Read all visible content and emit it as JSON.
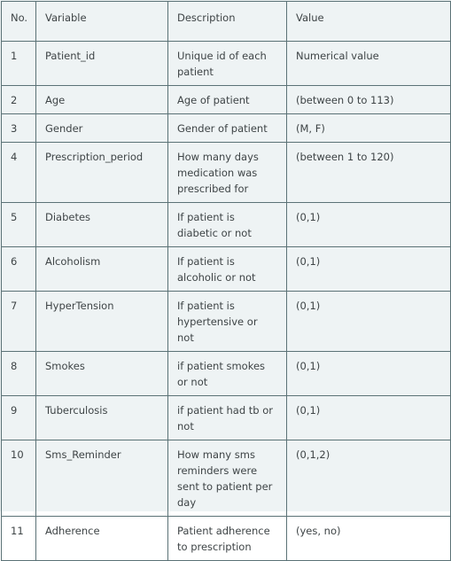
{
  "table": {
    "headers": [
      "No.",
      "Variable",
      "Description",
      "Value"
    ],
    "rows": [
      [
        "1",
        "Patient_id",
        "Unique id of each patient",
        "Numerical value"
      ],
      [
        "2",
        "Age",
        "Age of patient",
        "(between 0 to 113)"
      ],
      [
        "3",
        "Gender",
        "Gender of patient",
        "(M, F)"
      ],
      [
        "4",
        "Prescription_period",
        "How many days medication was prescribed for",
        "(between 1 to 120)"
      ],
      [
        "5",
        "Diabetes",
        "If patient is diabetic or not",
        "(0,1)"
      ],
      [
        "6",
        "Alcoholism",
        "If patient is alcoholic or not",
        "(0,1)"
      ],
      [
        "7",
        "HyperTension",
        "If patient is hypertensive or not",
        "(0,1)"
      ],
      [
        "8",
        "Smokes",
        "if patient smokes or not",
        "(0,1)"
      ],
      [
        "9",
        "Tuberculosis",
        "if patient had tb or not",
        "(0,1)"
      ],
      [
        "10",
        "Sms_Reminder",
        "How many sms reminders were sent to patient per day",
        "(0,1,2)"
      ],
      [
        "11",
        "Adherence",
        "Patient adherence to prescription",
        "(yes, no)"
      ]
    ]
  }
}
